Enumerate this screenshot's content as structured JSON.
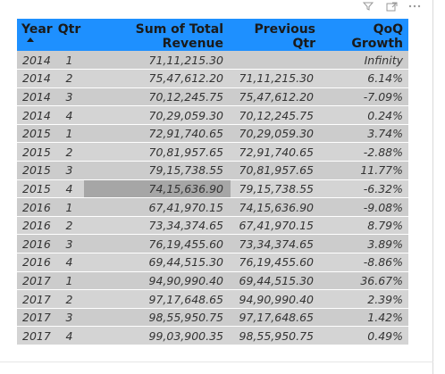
{
  "table": {
    "headers": {
      "year": "Year",
      "qtr": "Qtr",
      "revenue": "Sum of Total Revenue",
      "previous": "Previous Qtr",
      "qoq": "QoQ Growth"
    },
    "sort": {
      "column": "Year",
      "direction": "ascending"
    },
    "rows": [
      {
        "year": "2014",
        "qtr": "1",
        "revenue": "71,11,215.30",
        "previous": "",
        "qoq": "Infinity"
      },
      {
        "year": "2014",
        "qtr": "2",
        "revenue": "75,47,612.20",
        "previous": "71,11,215.30",
        "qoq": "6.14%"
      },
      {
        "year": "2014",
        "qtr": "3",
        "revenue": "70,12,245.75",
        "previous": "75,47,612.20",
        "qoq": "-7.09%"
      },
      {
        "year": "2014",
        "qtr": "4",
        "revenue": "70,29,059.30",
        "previous": "70,12,245.75",
        "qoq": "0.24%"
      },
      {
        "year": "2015",
        "qtr": "1",
        "revenue": "72,91,740.65",
        "previous": "70,29,059.30",
        "qoq": "3.74%"
      },
      {
        "year": "2015",
        "qtr": "2",
        "revenue": "70,81,957.65",
        "previous": "72,91,740.65",
        "qoq": "-2.88%"
      },
      {
        "year": "2015",
        "qtr": "3",
        "revenue": "79,15,738.55",
        "previous": "70,81,957.65",
        "qoq": "11.77%"
      },
      {
        "year": "2015",
        "qtr": "4",
        "revenue": "74,15,636.90",
        "previous": "79,15,738.55",
        "qoq": "-6.32%"
      },
      {
        "year": "2016",
        "qtr": "1",
        "revenue": "67,41,970.15",
        "previous": "74,15,636.90",
        "qoq": "-9.08%"
      },
      {
        "year": "2016",
        "qtr": "2",
        "revenue": "73,34,374.65",
        "previous": "67,41,970.15",
        "qoq": "8.79%"
      },
      {
        "year": "2016",
        "qtr": "3",
        "revenue": "76,19,455.60",
        "previous": "73,34,374.65",
        "qoq": "3.89%"
      },
      {
        "year": "2016",
        "qtr": "4",
        "revenue": "69,44,515.30",
        "previous": "76,19,455.60",
        "qoq": "-8.86%"
      },
      {
        "year": "2017",
        "qtr": "1",
        "revenue": "94,90,990.40",
        "previous": "69,44,515.30",
        "qoq": "36.67%"
      },
      {
        "year": "2017",
        "qtr": "2",
        "revenue": "97,17,648.65",
        "previous": "94,90,990.40",
        "qoq": "2.39%"
      },
      {
        "year": "2017",
        "qtr": "3",
        "revenue": "98,55,950.75",
        "previous": "97,17,648.65",
        "qoq": "1.42%"
      },
      {
        "year": "2017",
        "qtr": "4",
        "revenue": "99,03,900.35",
        "previous": "98,55,950.75",
        "qoq": "0.49%"
      }
    ]
  },
  "toolbar": {
    "icons": [
      "filter-icon",
      "focus-mode-icon",
      "more-options-icon"
    ]
  },
  "colors": {
    "header_bg": "#1e90ff",
    "row_bg": "#cccccc",
    "highlight_cell": "#a6a6a6"
  }
}
